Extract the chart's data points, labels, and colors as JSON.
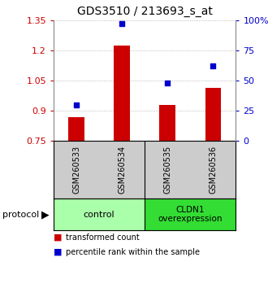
{
  "title": "GDS3510 / 213693_s_at",
  "samples": [
    "GSM260533",
    "GSM260534",
    "GSM260535",
    "GSM260536"
  ],
  "transformed_count": [
    0.869,
    1.222,
    0.93,
    1.015
  ],
  "percentile_rank": [
    30,
    97,
    48,
    62
  ],
  "left_ylim": [
    0.75,
    1.35
  ],
  "left_yticks": [
    0.75,
    0.9,
    1.05,
    1.2,
    1.35
  ],
  "right_ylim": [
    0,
    100
  ],
  "right_yticks": [
    0,
    25,
    50,
    75,
    100
  ],
  "right_yticklabels": [
    "0",
    "25",
    "50",
    "75",
    "100%"
  ],
  "bar_color": "#cc0000",
  "dot_color": "#0000cc",
  "group_colors": [
    "#aaffaa",
    "#33dd33"
  ],
  "group_labels": [
    "control",
    "CLDN1\noverexpression"
  ],
  "protocol_label": "protocol",
  "legend_bar_label": "transformed count",
  "legend_dot_label": "percentile rank within the sample",
  "grid_color": "#aaaaaa",
  "plot_bg": "#ffffff",
  "sample_bg": "#cccccc",
  "bar_width": 0.35
}
